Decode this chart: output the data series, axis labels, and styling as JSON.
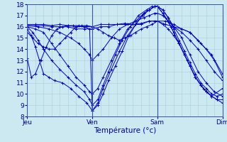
{
  "xlabel": "Température (°c)",
  "bg_color": "#cce8f0",
  "plot_bg_color": "#cce8f0",
  "grid_color": "#aaccdd",
  "line_color": "#0000cc",
  "marker": "+",
  "ylim": [
    8,
    18
  ],
  "yticks": [
    8,
    9,
    10,
    11,
    12,
    13,
    14,
    15,
    16,
    17,
    18
  ],
  "day_positions": [
    0,
    48,
    96,
    144
  ],
  "day_labels": [
    "Jeu",
    "Ven",
    "Sam",
    "Dim"
  ],
  "series": [
    [
      [
        0,
        15.8
      ],
      [
        3,
        15.2
      ],
      [
        6,
        14.2
      ],
      [
        9,
        13.0
      ],
      [
        12,
        11.8
      ],
      [
        16,
        11.5
      ],
      [
        20,
        11.2
      ],
      [
        26,
        11.0
      ],
      [
        32,
        10.5
      ],
      [
        38,
        9.8
      ],
      [
        44,
        9.2
      ],
      [
        48,
        8.5
      ],
      [
        52,
        9.0
      ],
      [
        56,
        10.0
      ],
      [
        60,
        11.2
      ],
      [
        65,
        12.5
      ],
      [
        70,
        13.8
      ],
      [
        75,
        15.2
      ],
      [
        80,
        16.2
      ],
      [
        85,
        17.0
      ],
      [
        90,
        17.5
      ],
      [
        94,
        17.8
      ],
      [
        96,
        17.8
      ],
      [
        100,
        17.2
      ],
      [
        104,
        16.5
      ],
      [
        108,
        15.5
      ],
      [
        112,
        14.5
      ],
      [
        116,
        13.5
      ],
      [
        120,
        12.5
      ],
      [
        124,
        11.5
      ],
      [
        128,
        10.8
      ],
      [
        132,
        10.2
      ],
      [
        136,
        9.8
      ],
      [
        140,
        9.5
      ],
      [
        144,
        9.5
      ]
    ],
    [
      [
        0,
        16.0
      ],
      [
        4,
        15.5
      ],
      [
        8,
        14.8
      ],
      [
        12,
        14.0
      ],
      [
        18,
        13.0
      ],
      [
        24,
        12.2
      ],
      [
        30,
        11.5
      ],
      [
        36,
        10.8
      ],
      [
        42,
        10.2
      ],
      [
        46,
        9.5
      ],
      [
        48,
        9.0
      ],
      [
        52,
        9.5
      ],
      [
        56,
        10.8
      ],
      [
        60,
        12.0
      ],
      [
        65,
        13.5
      ],
      [
        70,
        14.8
      ],
      [
        76,
        16.0
      ],
      [
        82,
        17.0
      ],
      [
        88,
        17.5
      ],
      [
        92,
        17.8
      ],
      [
        96,
        17.8
      ],
      [
        100,
        17.5
      ],
      [
        104,
        16.8
      ],
      [
        108,
        15.8
      ],
      [
        112,
        14.8
      ],
      [
        116,
        13.8
      ],
      [
        120,
        12.8
      ],
      [
        124,
        11.8
      ],
      [
        128,
        11.0
      ],
      [
        132,
        10.5
      ],
      [
        136,
        10.0
      ],
      [
        140,
        9.8
      ],
      [
        144,
        10.0
      ]
    ],
    [
      [
        0,
        16.0
      ],
      [
        6,
        15.8
      ],
      [
        12,
        15.5
      ],
      [
        18,
        14.5
      ],
      [
        24,
        13.5
      ],
      [
        30,
        12.5
      ],
      [
        36,
        11.5
      ],
      [
        42,
        10.8
      ],
      [
        46,
        10.2
      ],
      [
        48,
        10.0
      ],
      [
        52,
        10.5
      ],
      [
        56,
        11.5
      ],
      [
        62,
        13.0
      ],
      [
        68,
        14.5
      ],
      [
        74,
        15.8
      ],
      [
        80,
        16.5
      ],
      [
        86,
        17.2
      ],
      [
        90,
        17.5
      ],
      [
        94,
        17.8
      ],
      [
        96,
        17.8
      ],
      [
        100,
        17.5
      ],
      [
        104,
        16.8
      ],
      [
        108,
        16.0
      ],
      [
        114,
        15.0
      ],
      [
        120,
        13.5
      ],
      [
        126,
        12.0
      ],
      [
        132,
        11.0
      ],
      [
        138,
        10.2
      ],
      [
        144,
        9.8
      ]
    ],
    [
      [
        0,
        16.1
      ],
      [
        8,
        16.0
      ],
      [
        16,
        15.8
      ],
      [
        24,
        15.5
      ],
      [
        32,
        15.0
      ],
      [
        38,
        14.5
      ],
      [
        42,
        14.0
      ],
      [
        46,
        13.5
      ],
      [
        48,
        13.0
      ],
      [
        52,
        13.5
      ],
      [
        56,
        14.0
      ],
      [
        62,
        15.0
      ],
      [
        68,
        15.8
      ],
      [
        74,
        16.2
      ],
      [
        80,
        16.5
      ],
      [
        86,
        16.8
      ],
      [
        90,
        17.0
      ],
      [
        94,
        17.2
      ],
      [
        96,
        17.2
      ],
      [
        100,
        17.0
      ],
      [
        104,
        16.5
      ],
      [
        108,
        16.0
      ],
      [
        114,
        15.5
      ],
      [
        120,
        14.8
      ],
      [
        126,
        14.0
      ],
      [
        132,
        13.0
      ],
      [
        138,
        12.0
      ],
      [
        144,
        11.2
      ]
    ],
    [
      [
        0,
        16.1
      ],
      [
        6,
        16.1
      ],
      [
        12,
        16.1
      ],
      [
        18,
        16.0
      ],
      [
        24,
        16.0
      ],
      [
        30,
        16.0
      ],
      [
        36,
        15.8
      ],
      [
        42,
        15.8
      ],
      [
        48,
        15.8
      ],
      [
        54,
        16.0
      ],
      [
        60,
        16.0
      ],
      [
        66,
        16.2
      ],
      [
        72,
        16.2
      ],
      [
        78,
        16.2
      ],
      [
        84,
        16.2
      ],
      [
        90,
        16.5
      ],
      [
        94,
        16.5
      ],
      [
        96,
        16.5
      ],
      [
        102,
        16.5
      ],
      [
        108,
        16.2
      ],
      [
        114,
        15.8
      ],
      [
        120,
        15.5
      ],
      [
        126,
        14.8
      ],
      [
        132,
        14.0
      ],
      [
        138,
        13.0
      ],
      [
        144,
        11.5
      ]
    ],
    [
      [
        0,
        16.2
      ],
      [
        6,
        16.2
      ],
      [
        12,
        16.2
      ],
      [
        18,
        16.1
      ],
      [
        24,
        16.2
      ],
      [
        30,
        16.1
      ],
      [
        36,
        16.0
      ],
      [
        42,
        16.0
      ],
      [
        48,
        16.0
      ],
      [
        54,
        16.2
      ],
      [
        60,
        16.2
      ],
      [
        66,
        16.2
      ],
      [
        72,
        16.3
      ],
      [
        78,
        16.2
      ],
      [
        84,
        16.3
      ],
      [
        90,
        16.5
      ],
      [
        96,
        16.5
      ],
      [
        102,
        16.2
      ],
      [
        108,
        16.0
      ],
      [
        114,
        15.8
      ],
      [
        120,
        15.5
      ],
      [
        128,
        14.5
      ],
      [
        136,
        13.5
      ],
      [
        144,
        11.8
      ]
    ],
    [
      [
        0,
        15.5
      ],
      [
        4,
        15.0
      ],
      [
        8,
        14.5
      ],
      [
        12,
        14.2
      ],
      [
        16,
        14.0
      ],
      [
        20,
        14.0
      ],
      [
        24,
        14.5
      ],
      [
        28,
        15.0
      ],
      [
        32,
        15.5
      ],
      [
        36,
        16.0
      ],
      [
        40,
        16.1
      ],
      [
        44,
        16.1
      ],
      [
        48,
        16.0
      ],
      [
        52,
        15.8
      ],
      [
        56,
        15.5
      ],
      [
        60,
        15.2
      ],
      [
        64,
        15.0
      ],
      [
        68,
        14.8
      ],
      [
        72,
        15.0
      ],
      [
        76,
        15.2
      ],
      [
        80,
        15.5
      ],
      [
        84,
        15.8
      ],
      [
        88,
        16.0
      ],
      [
        92,
        16.2
      ],
      [
        96,
        16.5
      ],
      [
        100,
        16.2
      ],
      [
        104,
        15.8
      ],
      [
        108,
        15.2
      ],
      [
        112,
        14.5
      ],
      [
        116,
        13.5
      ],
      [
        120,
        12.5
      ],
      [
        124,
        11.5
      ],
      [
        128,
        10.8
      ],
      [
        132,
        10.2
      ],
      [
        136,
        9.8
      ],
      [
        144,
        10.5
      ]
    ],
    [
      [
        0,
        13.2
      ],
      [
        3,
        11.5
      ],
      [
        6,
        11.8
      ],
      [
        10,
        13.0
      ],
      [
        14,
        14.2
      ],
      [
        18,
        15.2
      ],
      [
        22,
        15.8
      ],
      [
        26,
        16.0
      ],
      [
        30,
        16.1
      ],
      [
        34,
        16.1
      ],
      [
        38,
        16.1
      ],
      [
        42,
        16.0
      ],
      [
        46,
        15.8
      ],
      [
        48,
        8.5
      ],
      [
        52,
        9.2
      ],
      [
        56,
        10.5
      ],
      [
        62,
        12.2
      ],
      [
        68,
        13.8
      ],
      [
        74,
        15.2
      ],
      [
        80,
        16.2
      ],
      [
        86,
        17.2
      ],
      [
        90,
        17.5
      ],
      [
        94,
        17.8
      ],
      [
        96,
        17.8
      ],
      [
        100,
        17.2
      ],
      [
        106,
        16.0
      ],
      [
        112,
        14.5
      ],
      [
        118,
        13.0
      ],
      [
        124,
        11.5
      ],
      [
        130,
        10.5
      ],
      [
        136,
        9.8
      ],
      [
        140,
        9.5
      ],
      [
        144,
        9.2
      ]
    ]
  ]
}
